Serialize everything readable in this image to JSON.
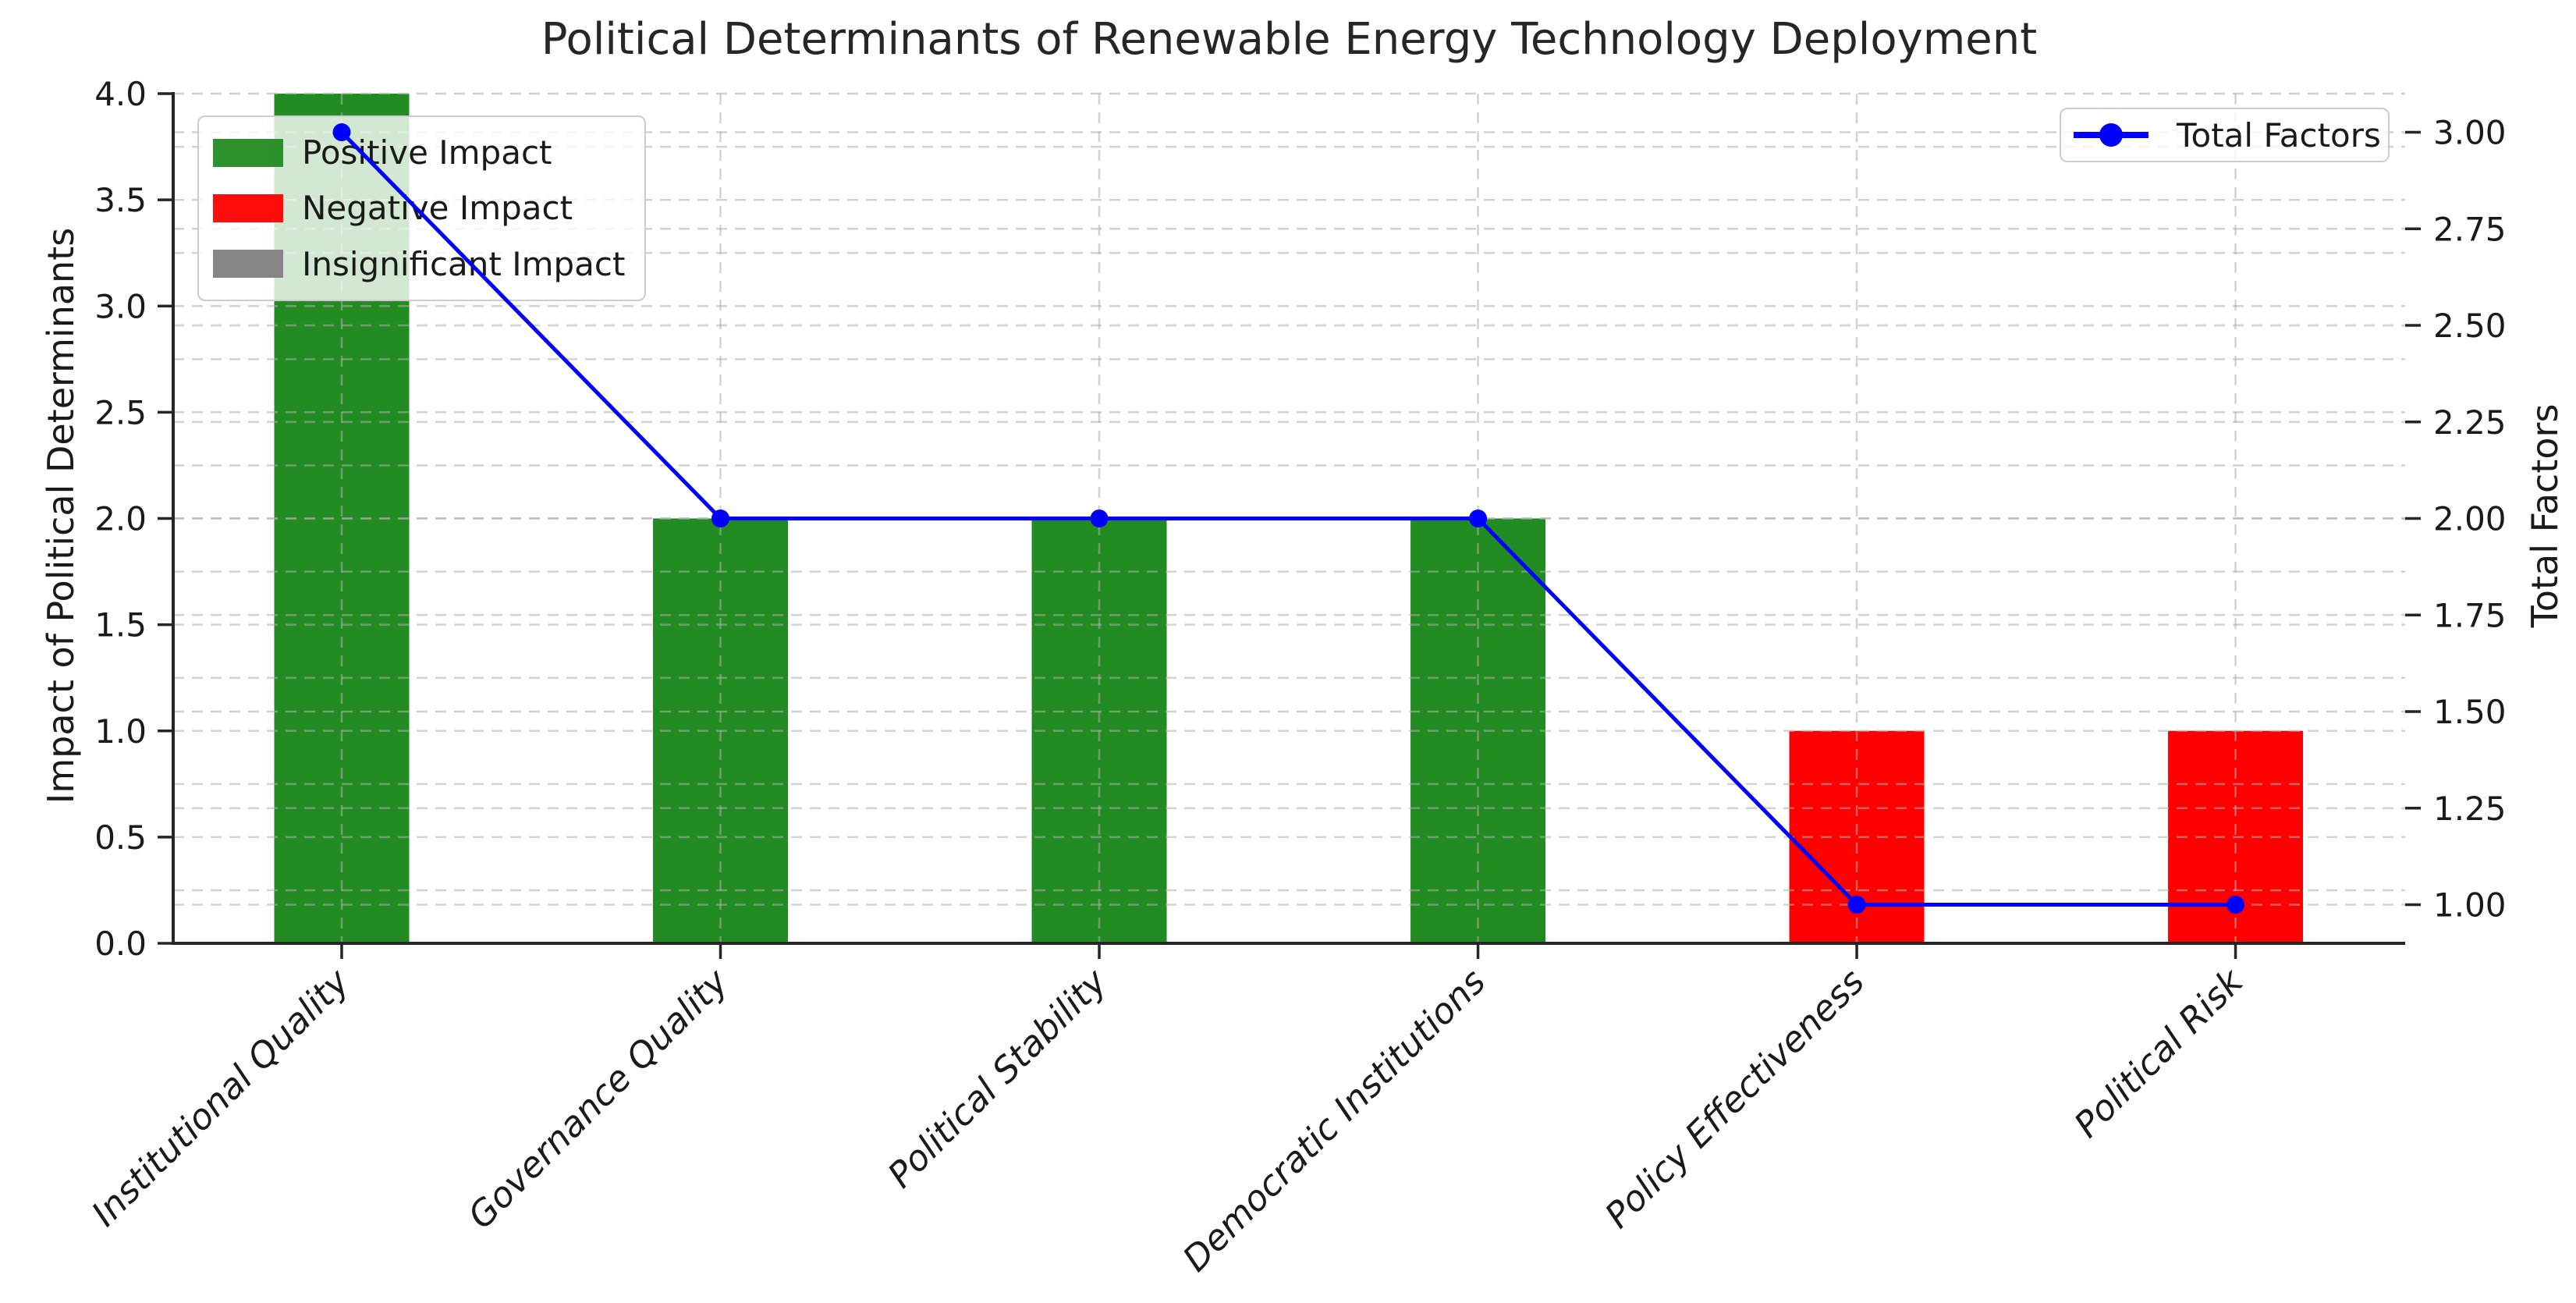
{
  "title": "Political Determinants of Renewable Energy Technology Deployment",
  "axes": {
    "left_label": "Impact of Political Determinants",
    "right_label": "Total Factors"
  },
  "legend_impact": {
    "items": [
      {
        "label": "Positive Impact",
        "color": "#228B22"
      },
      {
        "label": "Negative Impact",
        "color": "#FF0000"
      },
      {
        "label": "Insignificant Impact",
        "color": "#808080"
      }
    ]
  },
  "legend_line": {
    "label": "Total Factors",
    "color": "#0000FF"
  },
  "chart_data": {
    "type": "bar",
    "title": "Political Determinants of Renewable Energy Technology Deployment",
    "categories": [
      "Institutional Quality",
      "Governance Quality",
      "Political Stability",
      "Democratic Institutions",
      "Policy Effectiveness",
      "Political Risk"
    ],
    "series": [
      {
        "name": "Impact of Political Determinants",
        "render": "bar",
        "axis": "left",
        "values": [
          4.0,
          2.0,
          2.0,
          2.0,
          1.0,
          1.0
        ],
        "impact_class": [
          "Positive Impact",
          "Positive Impact",
          "Positive Impact",
          "Positive Impact",
          "Negative Impact",
          "Negative Impact"
        ],
        "bar_colors": [
          "#228B22",
          "#228B22",
          "#228B22",
          "#228B22",
          "#FF0000",
          "#FF0000"
        ]
      },
      {
        "name": "Total Factors",
        "render": "line",
        "axis": "right",
        "values": [
          3.0,
          2.0,
          2.0,
          2.0,
          1.0,
          1.0
        ],
        "color": "#0000FF"
      }
    ],
    "left_axis": {
      "label": "Impact of Political Determinants",
      "ylim": [
        0,
        4
      ],
      "tick_values": [
        0.0,
        0.5,
        1.0,
        1.5,
        2.0,
        2.5,
        3.0,
        3.5,
        4.0
      ],
      "tick_labels": [
        "0.0",
        "0.5",
        "1.0",
        "1.5",
        "2.0",
        "2.5",
        "3.0",
        "3.5",
        "4.0"
      ],
      "grid_step": 0.25
    },
    "right_axis": {
      "label": "Total Factors",
      "ylim": [
        0.9,
        3.1
      ],
      "tick_values": [
        1.0,
        1.25,
        1.5,
        1.75,
        2.0,
        2.25,
        2.5,
        2.75,
        3.0
      ],
      "tick_labels": [
        "1.00",
        "1.25",
        "1.50",
        "1.75",
        "2.00",
        "2.25",
        "2.50",
        "2.75",
        "3.00"
      ],
      "grid_step": 0.25
    },
    "grid": {
      "dashed": true,
      "vertical_per_category": true
    },
    "legend_position": {
      "impact": "upper left",
      "line": "upper right"
    },
    "colors": {
      "positive": "#228B22",
      "negative": "#FF0000",
      "insignificant": "#808080",
      "line": "#0000FF",
      "grid": "#AFAFAF",
      "spine": "#262626",
      "text": "#1a1a1a",
      "title": "#262626"
    }
  }
}
